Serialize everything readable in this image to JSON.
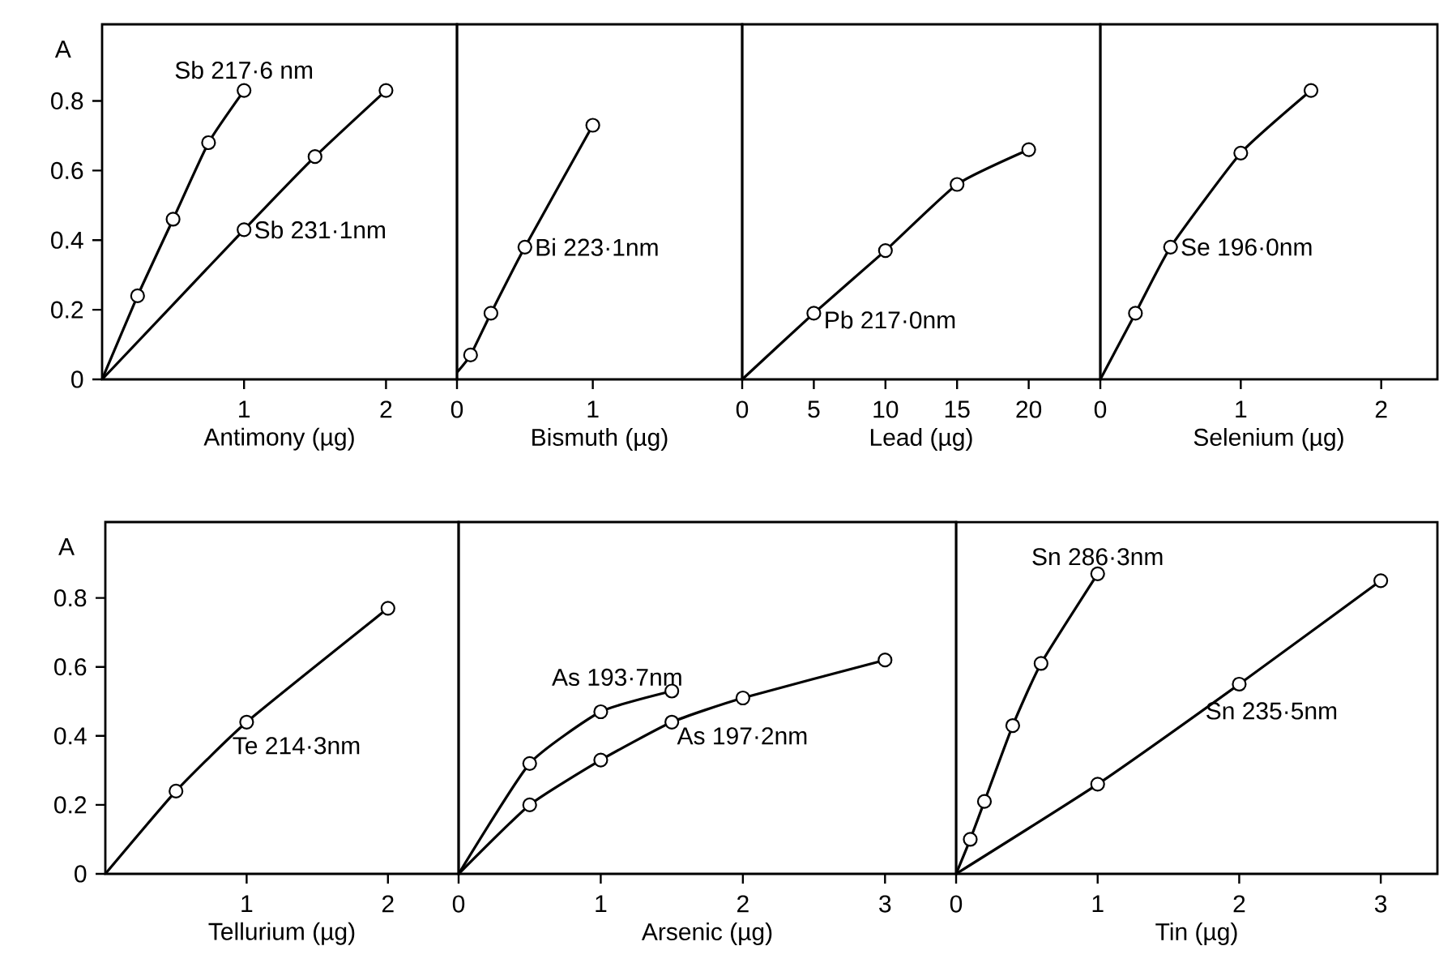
{
  "chart_data": [
    {
      "type": "line",
      "ylabel": "A",
      "xlabel": "Antimony (µg)",
      "marker": "circle",
      "xlim": [
        0,
        2.5
      ],
      "ylim": [
        0,
        1.02
      ],
      "xticks": [
        1,
        2
      ],
      "yticks": [
        0,
        0.2,
        0.4,
        0.6,
        0.8
      ],
      "series": [
        {
          "name": "Sb 217·6 nm",
          "color": "#000000",
          "x": [
            0,
            0.25,
            0.5,
            0.75,
            1
          ],
          "values": [
            0,
            0.24,
            0.46,
            0.68,
            0.83
          ]
        },
        {
          "name": "Sb 231·1nm",
          "color": "#000000",
          "x": [
            0,
            1,
            1.5,
            2
          ],
          "values": [
            0,
            0.43,
            0.64,
            0.83
          ]
        }
      ]
    },
    {
      "type": "line",
      "xlabel": "Bismuth (µg)",
      "marker": "circle",
      "tick_labels": "x",
      "xlim": [
        0,
        2.1
      ],
      "ylim": [
        0,
        1.02
      ],
      "yticks": [
        0,
        0.2,
        0.4,
        0.6,
        0.8
      ],
      "xticks": [
        0,
        1
      ],
      "series": [
        {
          "name": "Bi 223·1nm",
          "color": "#000000",
          "x": [
            0,
            0.1,
            0.25,
            0.5,
            1
          ],
          "values": [
            0.02,
            0.07,
            0.19,
            0.38,
            0.73
          ]
        }
      ]
    },
    {
      "type": "line",
      "xlabel": "Lead (µg)",
      "marker": "circle",
      "tick_labels": "x",
      "xlim": [
        0,
        25
      ],
      "ylim": [
        0,
        1.02
      ],
      "yticks": [
        0,
        0.2,
        0.4,
        0.6,
        0.8
      ],
      "xticks": [
        0,
        5,
        10,
        15,
        20
      ],
      "series": [
        {
          "name": "Pb 217·0nm",
          "color": "#000000",
          "x": [
            0,
            5,
            10,
            15,
            20
          ],
          "values": [
            0,
            0.19,
            0.37,
            0.56,
            0.66
          ]
        }
      ]
    },
    {
      "type": "line",
      "xlabel": "Selenium (µg)",
      "marker": "circle",
      "tick_labels": "x",
      "xlim": [
        0,
        2.4
      ],
      "ylim": [
        0,
        1.02
      ],
      "yticks": [
        0,
        0.2,
        0.4,
        0.6,
        0.8
      ],
      "xticks": [
        0,
        1,
        2
      ],
      "series": [
        {
          "name": "Se 196·0nm",
          "color": "#000000",
          "x": [
            0,
            0.25,
            0.5,
            1,
            1.5
          ],
          "values": [
            0,
            0.19,
            0.38,
            0.65,
            0.83
          ]
        }
      ]
    },
    {
      "type": "line",
      "ylabel": "A",
      "xlabel": "Tellurium (µg)",
      "marker": "circle",
      "xlim": [
        0,
        2.5
      ],
      "ylim": [
        0,
        1.02
      ],
      "xticks": [
        1,
        2
      ],
      "yticks": [
        0,
        0.2,
        0.4,
        0.6,
        0.8
      ],
      "series": [
        {
          "name": "Te 214·3nm",
          "color": "#000000",
          "x": [
            0,
            0.5,
            1,
            2
          ],
          "values": [
            0,
            0.24,
            0.44,
            0.77
          ]
        }
      ]
    },
    {
      "type": "line",
      "xlabel": "Arsenic (µg)",
      "marker": "circle",
      "tick_labels": "x",
      "xlim": [
        0,
        3.5
      ],
      "ylim": [
        0,
        1.02
      ],
      "yticks": [
        0,
        0.2,
        0.4,
        0.6,
        0.8
      ],
      "xticks": [
        0,
        1,
        2,
        3
      ],
      "series": [
        {
          "name": "As 193·7nm",
          "color": "#000000",
          "x": [
            0,
            0.5,
            1,
            1.5
          ],
          "values": [
            0,
            0.32,
            0.47,
            0.53
          ]
        },
        {
          "name": "As 197·2nm",
          "color": "#000000",
          "x": [
            0,
            0.5,
            1,
            1.5,
            2,
            3
          ],
          "values": [
            0,
            0.2,
            0.33,
            0.44,
            0.51,
            0.62
          ]
        }
      ]
    },
    {
      "type": "line",
      "xlabel": "Tin  (µg)",
      "marker": "circle",
      "tick_labels": "x",
      "xlim": [
        0,
        3.4
      ],
      "ylim": [
        0,
        1.02
      ],
      "yticks": [
        0,
        0.2,
        0.4,
        0.6,
        0.8
      ],
      "xticks": [
        0,
        1,
        2,
        3
      ],
      "series": [
        {
          "name": "Sn 286·3nm",
          "color": "#000000",
          "x": [
            0,
            0.1,
            0.2,
            0.4,
            0.6,
            1
          ],
          "values": [
            0,
            0.1,
            0.21,
            0.43,
            0.61,
            0.87
          ]
        },
        {
          "name": "Sn 235·5nm",
          "color": "#000000",
          "x": [
            0,
            1,
            2,
            3
          ],
          "values": [
            0,
            0.26,
            0.55,
            0.85
          ]
        }
      ]
    }
  ]
}
